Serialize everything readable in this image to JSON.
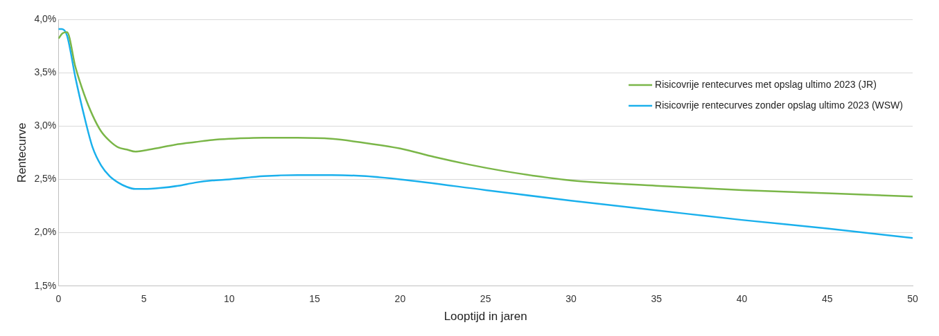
{
  "chart_data": {
    "type": "line",
    "xlabel": "Looptijd in jaren",
    "ylabel": "Rentecurve",
    "xlim": [
      0,
      50
    ],
    "xticks": [
      0,
      5,
      10,
      15,
      20,
      25,
      30,
      35,
      40,
      45,
      50
    ],
    "ylim": [
      1.5,
      4.0
    ],
    "yticks": [
      {
        "value": 1.5,
        "label": "1,5%"
      },
      {
        "value": 2.0,
        "label": "2,0%"
      },
      {
        "value": 2.5,
        "label": "2,5%"
      },
      {
        "value": 3.0,
        "label": "3,0%"
      },
      {
        "value": 3.5,
        "label": "3,5%"
      },
      {
        "value": 4.0,
        "label": "4,0%"
      }
    ],
    "grid": "y",
    "legend": "top right",
    "marker": "none",
    "line_style": "solid",
    "series": [
      {
        "name": "Risicovrije rentecurves met opslag ultimo 2023 (JR)",
        "color": "#7ab648",
        "x": [
          0,
          0.25,
          0.5,
          1,
          1.5,
          2,
          2.5,
          3,
          3.5,
          4,
          4.5,
          5,
          6,
          7,
          8,
          9,
          10,
          12,
          14,
          16,
          18,
          20,
          22,
          24,
          26,
          28,
          30,
          35,
          40,
          45,
          50
        ],
        "values": [
          3.82,
          3.87,
          3.88,
          3.55,
          3.3,
          3.1,
          2.95,
          2.86,
          2.8,
          2.78,
          2.76,
          2.77,
          2.8,
          2.83,
          2.85,
          2.87,
          2.88,
          2.89,
          2.89,
          2.88,
          2.84,
          2.79,
          2.71,
          2.64,
          2.58,
          2.53,
          2.49,
          2.44,
          2.4,
          2.37,
          2.34
        ]
      },
      {
        "name": "Risicovrije rentecurves zonder opslag ultimo 2023 (WSW)",
        "color": "#1ab0ec",
        "x": [
          0,
          0.2,
          0.5,
          1,
          1.5,
          2,
          2.5,
          3,
          3.5,
          4,
          4.5,
          5,
          6,
          7,
          8,
          9,
          10,
          12,
          14,
          16,
          18,
          20,
          25,
          30,
          35,
          40,
          45,
          50
        ],
        "values": [
          3.91,
          3.91,
          3.85,
          3.45,
          3.1,
          2.8,
          2.63,
          2.53,
          2.47,
          2.43,
          2.41,
          2.41,
          2.42,
          2.44,
          2.47,
          2.49,
          2.5,
          2.53,
          2.54,
          2.54,
          2.53,
          2.5,
          2.4,
          2.3,
          2.21,
          2.12,
          2.04,
          1.95
        ]
      }
    ]
  }
}
